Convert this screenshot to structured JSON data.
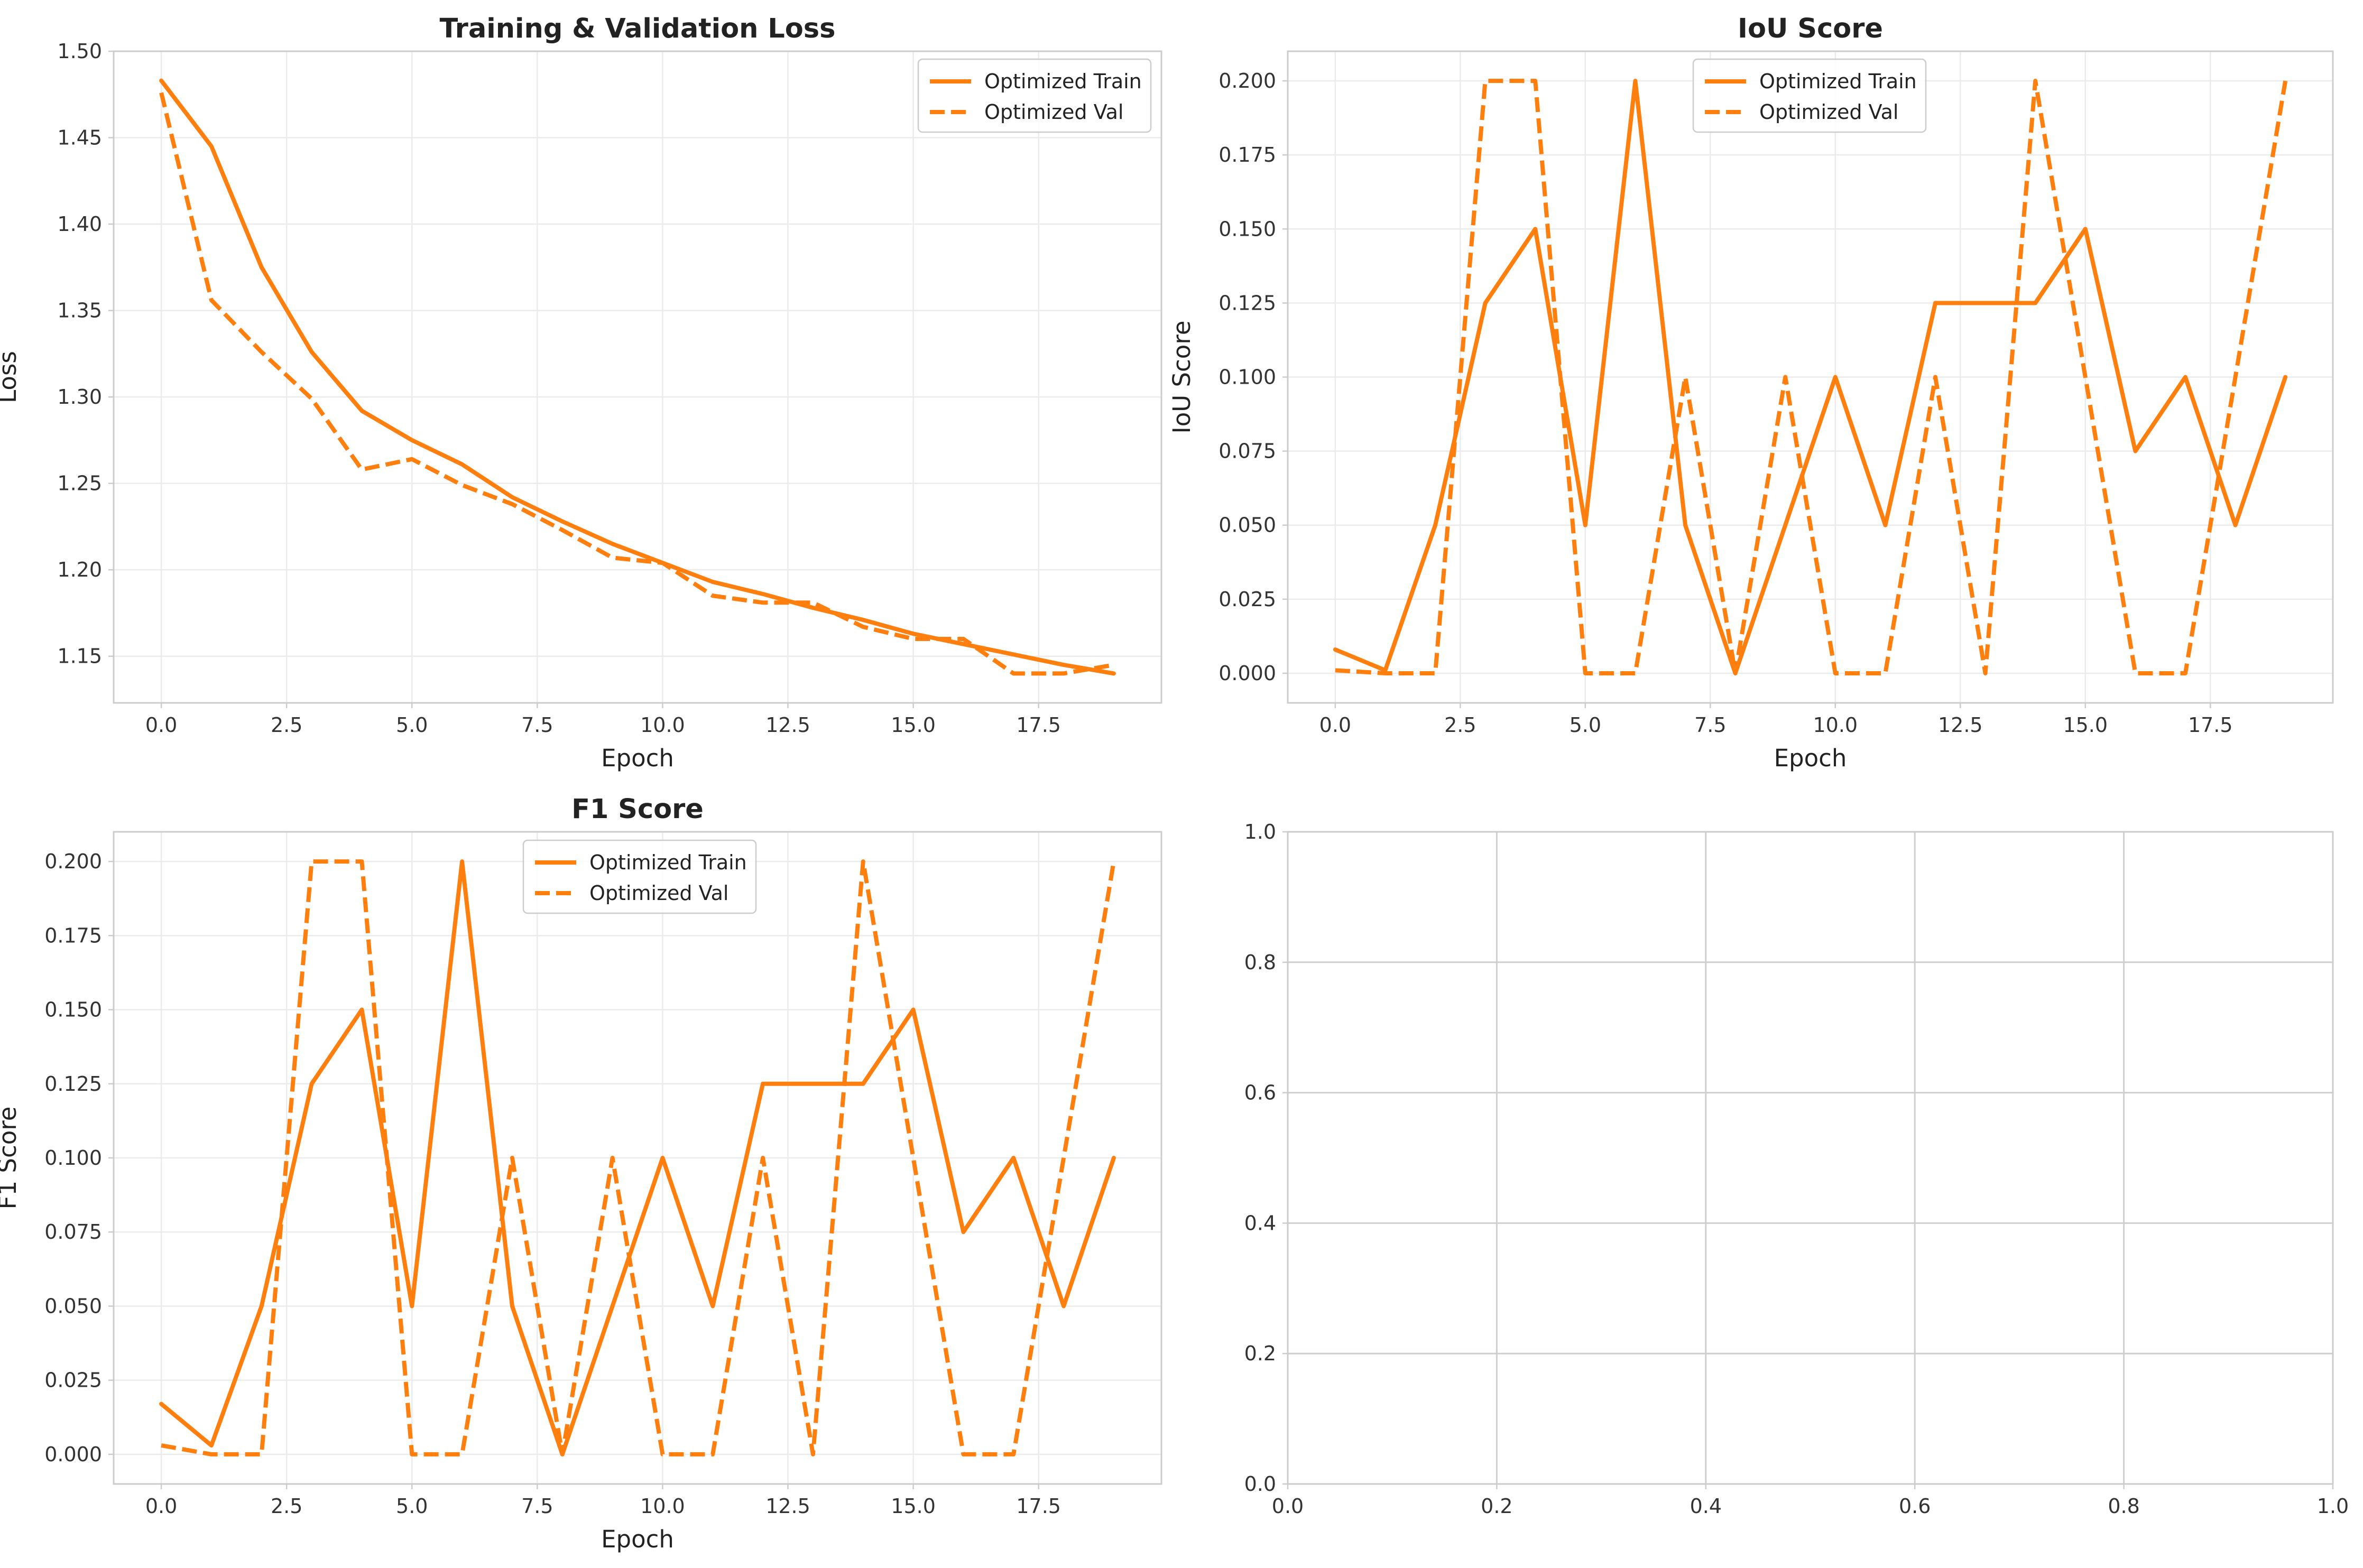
{
  "colors": {
    "series": "#ff7f0e"
  },
  "chart_data": [
    {
      "type": "line",
      "title": "Training & Validation Loss",
      "xlabel": "Epoch",
      "ylabel": "Loss",
      "xlim": [
        -0.95,
        19.95
      ],
      "ylim": [
        1.123,
        1.5
      ],
      "xticks": [
        "0.0",
        "2.5",
        "5.0",
        "7.5",
        "10.0",
        "12.5",
        "15.0",
        "17.5"
      ],
      "yticks": [
        "1.15",
        "1.20",
        "1.25",
        "1.30",
        "1.35",
        "1.40",
        "1.45",
        "1.50"
      ],
      "grid": true,
      "legend": "top-right",
      "x": [
        0,
        1,
        2,
        3,
        4,
        5,
        6,
        7,
        8,
        9,
        10,
        11,
        12,
        13,
        14,
        15,
        16,
        17,
        18,
        19
      ],
      "series": [
        {
          "name": "Optimized Train",
          "style": "solid",
          "values": [
            1.483,
            1.445,
            1.375,
            1.326,
            1.292,
            1.275,
            1.261,
            1.242,
            1.228,
            1.215,
            1.204,
            1.193,
            1.186,
            1.178,
            1.171,
            1.163,
            1.157,
            1.151,
            1.145,
            1.14
          ]
        },
        {
          "name": "Optimized Val",
          "style": "dashed",
          "values": [
            1.476,
            1.356,
            1.326,
            1.299,
            1.258,
            1.264,
            1.249,
            1.238,
            1.223,
            1.207,
            1.204,
            1.185,
            1.181,
            1.181,
            1.167,
            1.16,
            1.16,
            1.14,
            1.14,
            1.145
          ]
        }
      ]
    },
    {
      "type": "line",
      "title": "IoU Score",
      "xlabel": "Epoch",
      "ylabel": "IoU Score",
      "xlim": [
        -0.95,
        19.95
      ],
      "ylim": [
        -0.01,
        0.21
      ],
      "xticks": [
        "0.0",
        "2.5",
        "5.0",
        "7.5",
        "10.0",
        "12.5",
        "15.0",
        "17.5"
      ],
      "yticks": [
        "0.000",
        "0.025",
        "0.050",
        "0.075",
        "0.100",
        "0.125",
        "0.150",
        "0.175",
        "0.200"
      ],
      "grid": true,
      "legend": "top-center",
      "x": [
        0,
        1,
        2,
        3,
        4,
        5,
        6,
        7,
        8,
        9,
        10,
        11,
        12,
        13,
        14,
        15,
        16,
        17,
        18,
        19
      ],
      "series": [
        {
          "name": "Optimized Train",
          "style": "solid",
          "values": [
            0.008,
            0.001,
            0.05,
            0.125,
            0.15,
            0.05,
            0.2,
            0.05,
            0.0,
            0.05,
            0.1,
            0.05,
            0.125,
            0.125,
            0.125,
            0.15,
            0.075,
            0.1,
            0.05,
            0.1
          ]
        },
        {
          "name": "Optimized Val",
          "style": "dashed",
          "values": [
            0.001,
            0.0,
            0.0,
            0.2,
            0.2,
            0.0,
            0.0,
            0.1,
            0.0,
            0.1,
            0.0,
            0.0,
            0.1,
            0.0,
            0.2,
            0.1,
            0.0,
            0.0,
            0.1,
            0.2
          ]
        }
      ]
    },
    {
      "type": "line",
      "title": "F1 Score",
      "xlabel": "Epoch",
      "ylabel": "F1 Score",
      "xlim": [
        -0.95,
        19.95
      ],
      "ylim": [
        -0.01,
        0.21
      ],
      "xticks": [
        "0.0",
        "2.5",
        "5.0",
        "7.5",
        "10.0",
        "12.5",
        "15.0",
        "17.5"
      ],
      "yticks": [
        "0.000",
        "0.025",
        "0.050",
        "0.075",
        "0.100",
        "0.125",
        "0.150",
        "0.175",
        "0.200"
      ],
      "grid": true,
      "legend": "top-center",
      "x": [
        0,
        1,
        2,
        3,
        4,
        5,
        6,
        7,
        8,
        9,
        10,
        11,
        12,
        13,
        14,
        15,
        16,
        17,
        18,
        19
      ],
      "series": [
        {
          "name": "Optimized Train",
          "style": "solid",
          "values": [
            0.017,
            0.003,
            0.05,
            0.125,
            0.15,
            0.05,
            0.2,
            0.05,
            0.0,
            0.05,
            0.1,
            0.05,
            0.125,
            0.125,
            0.125,
            0.15,
            0.075,
            0.1,
            0.05,
            0.1
          ]
        },
        {
          "name": "Optimized Val",
          "style": "dashed",
          "values": [
            0.003,
            0.0,
            0.0,
            0.2,
            0.2,
            0.0,
            0.0,
            0.1,
            0.0,
            0.1,
            0.0,
            0.0,
            0.1,
            0.0,
            0.2,
            0.1,
            0.0,
            0.0,
            0.1,
            0.2
          ]
        }
      ]
    },
    {
      "type": "line",
      "title": "",
      "xlabel": "",
      "ylabel": "",
      "xlim": [
        0,
        1
      ],
      "ylim": [
        0,
        1
      ],
      "xticks": [
        "0.0",
        "0.2",
        "0.4",
        "0.6",
        "0.8",
        "1.0"
      ],
      "yticks": [
        "0.0",
        "0.2",
        "0.4",
        "0.6",
        "0.8",
        "1.0"
      ],
      "grid": true,
      "series": []
    }
  ]
}
